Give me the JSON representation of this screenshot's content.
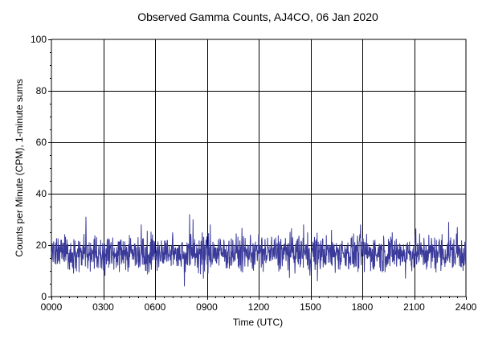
{
  "chart_data": {
    "type": "line",
    "title": "Observed Gamma Counts, AJ4CO, 06 Jan 2020",
    "xlabel": "Time (UTC)",
    "ylabel": "Counts per Minute (CPM), 1-minute sums",
    "xlim": [
      0,
      24
    ],
    "ylim": [
      0,
      100
    ],
    "x_ticks": [
      {
        "value": 0,
        "label": "0000"
      },
      {
        "value": 3,
        "label": "0300"
      },
      {
        "value": 6,
        "label": "0600"
      },
      {
        "value": 9,
        "label": "0900"
      },
      {
        "value": 12,
        "label": "1200"
      },
      {
        "value": 15,
        "label": "1500"
      },
      {
        "value": 18,
        "label": "1800"
      },
      {
        "value": 21,
        "label": "2100"
      },
      {
        "value": 24,
        "label": "2400"
      }
    ],
    "y_ticks": [
      {
        "value": 0,
        "label": "0"
      },
      {
        "value": 20,
        "label": "20"
      },
      {
        "value": 40,
        "label": "40"
      },
      {
        "value": 60,
        "label": "60"
      },
      {
        "value": 80,
        "label": "80"
      },
      {
        "value": 100,
        "label": "100"
      }
    ],
    "grid": true,
    "line_color": "#3a3a9a",
    "series_summary": {
      "interval_minutes": 1,
      "mean": 17,
      "typical_range": [
        10,
        24
      ],
      "min": 4,
      "max": 32
    },
    "notable_points": [
      {
        "x": 2.0,
        "y": 31
      },
      {
        "x": 5.2,
        "y": 28
      },
      {
        "x": 7.7,
        "y": 4
      },
      {
        "x": 8.0,
        "y": 32
      },
      {
        "x": 8.2,
        "y": 30
      },
      {
        "x": 8.8,
        "y": 7
      },
      {
        "x": 9.2,
        "y": 28
      },
      {
        "x": 14.6,
        "y": 28
      },
      {
        "x": 15.4,
        "y": 6
      },
      {
        "x": 17.9,
        "y": 28
      },
      {
        "x": 20.5,
        "y": 7
      },
      {
        "x": 23.0,
        "y": 29
      },
      {
        "x": 23.5,
        "y": 27
      }
    ]
  }
}
